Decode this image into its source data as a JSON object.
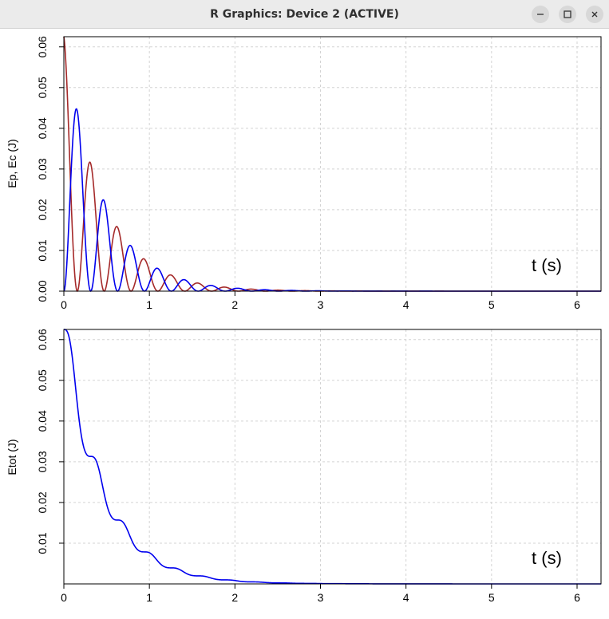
{
  "window": {
    "title": "R Graphics: Device 2 (ACTIVE)",
    "controls": [
      "minimize-icon",
      "maximize-icon",
      "close-icon"
    ]
  },
  "chart_data": [
    {
      "type": "line",
      "title": "",
      "xlabel": "",
      "ylabel": "Ep, Ec  (J)",
      "annotation": "t (s)",
      "xlim": [
        0,
        6.28
      ],
      "ylim": [
        0,
        0.0625
      ],
      "x_ticks": [
        "0",
        "1",
        "2",
        "3",
        "4",
        "5",
        "6"
      ],
      "y_ticks": [
        "0.00",
        "0.01",
        "0.02",
        "0.03",
        "0.04",
        "0.05",
        "0.06"
      ],
      "grid": true,
      "model": {
        "E0": 0.0625,
        "omega": 10.0,
        "gamma": 1.1
      },
      "series": [
        {
          "color": "#a52a2a",
          "peaks_x": [
            0.0,
            0.31,
            0.63,
            0.94,
            1.26,
            1.57,
            1.88,
            2.2,
            2.51
          ],
          "peaks_y": [
            0.0625,
            0.0332,
            0.0176,
            0.0094,
            0.005,
            0.0026,
            0.0014,
            0.0007,
            0.0004
          ]
        },
        {
          "color": "#0000ee",
          "peaks_x": [
            0.16,
            0.47,
            0.79,
            1.1,
            1.41,
            1.73,
            2.04,
            2.36,
            2.67
          ],
          "peaks_y": [
            0.0466,
            0.0247,
            0.0131,
            0.0069,
            0.0037,
            0.002,
            0.001,
            0.0006,
            0.0003
          ]
        }
      ]
    },
    {
      "type": "line",
      "title": "",
      "xlabel": "",
      "ylabel": "Etot (J)",
      "annotation": "t (s)",
      "xlim": [
        0,
        6.28
      ],
      "ylim": [
        0,
        0.0625
      ],
      "x_ticks": [
        "0",
        "1",
        "2",
        "3",
        "4",
        "5",
        "6"
      ],
      "y_ticks": [
        "0.01",
        "0.02",
        "0.03",
        "0.04",
        "0.05",
        "0.06"
      ],
      "grid": true,
      "series": [
        {
          "color": "#0000ee",
          "x": [
            0,
            0.31,
            0.63,
            0.94,
            1.26,
            1.57,
            1.88,
            2.2,
            2.51,
            3.0,
            4.0,
            6.28
          ],
          "y": [
            0.0625,
            0.0332,
            0.0176,
            0.0094,
            0.005,
            0.0026,
            0.0014,
            0.0007,
            0.0004,
            0.0001,
            0.0,
            0.0
          ]
        }
      ]
    }
  ]
}
